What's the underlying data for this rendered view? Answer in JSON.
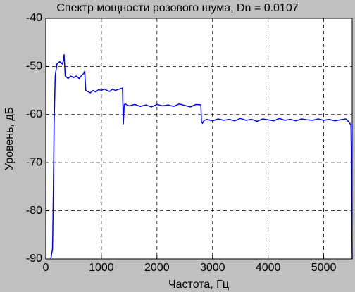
{
  "chart_data": {
    "type": "line",
    "title": "Спектр мощности розового шума, Dn = 0.0107",
    "x_label": "Частота, Гц",
    "y_label": "Уровень, дБ",
    "xlim": [
      0,
      5512.5
    ],
    "xticks": [
      0,
      1000,
      2000,
      3000,
      4000,
      5000
    ],
    "ylim": [
      -90,
      -40
    ],
    "yticks": [
      -90,
      -80,
      -70,
      -60,
      -50,
      -40
    ],
    "grid": true,
    "series": [
      {
        "color": "#0000ff",
        "x": [
          90,
          120,
          125,
          135,
          150,
          170,
          200,
          250,
          300,
          320,
          330,
          350,
          400,
          450,
          500,
          550,
          600,
          650,
          680,
          700,
          720,
          800,
          850,
          900,
          950,
          1000,
          1050,
          1100,
          1150,
          1200,
          1250,
          1300,
          1380,
          1395,
          1410,
          1430,
          1500,
          1600,
          1700,
          1800,
          1900,
          2000,
          2100,
          2200,
          2300,
          2400,
          2500,
          2600,
          2700,
          2790,
          2800,
          2820,
          2850,
          2900,
          3000,
          3100,
          3200,
          3300,
          3400,
          3500,
          3600,
          3700,
          3800,
          3900,
          4000,
          4100,
          4200,
          4300,
          4400,
          4500,
          4600,
          4700,
          4800,
          4900,
          5000,
          5100,
          5200,
          5300,
          5400,
          5450,
          5480,
          5490,
          5500,
          5505,
          5512
        ],
        "values": [
          -90,
          -88,
          -85,
          -76,
          -62,
          -52,
          -49.5,
          -49,
          -49.5,
          -48.5,
          -47.5,
          -52,
          -52.5,
          -52,
          -52.3,
          -52,
          -52.5,
          -51.8,
          -51.5,
          -51,
          -55,
          -55.5,
          -55,
          -55.3,
          -54.8,
          -55,
          -54.7,
          -55,
          -55.2,
          -54.7,
          -55,
          -54.8,
          -54.5,
          -62,
          -58,
          -57.8,
          -58.2,
          -57.9,
          -58.3,
          -58,
          -58.4,
          -57.9,
          -58.2,
          -58,
          -58.3,
          -57.8,
          -58.1,
          -58.4,
          -57.9,
          -58,
          -61.5,
          -61.8,
          -61.2,
          -61,
          -61.3,
          -60.9,
          -61.2,
          -61,
          -61.3,
          -60.8,
          -61.2,
          -61,
          -61.4,
          -60.9,
          -61.1,
          -61.3,
          -60.8,
          -61.2,
          -61,
          -61.3,
          -60.9,
          -61.1,
          -61.2,
          -60.9,
          -61.2,
          -61,
          -61.3,
          -61.1,
          -60.9,
          -61.5,
          -62,
          -62,
          -70,
          -80,
          -90
        ]
      }
    ]
  }
}
